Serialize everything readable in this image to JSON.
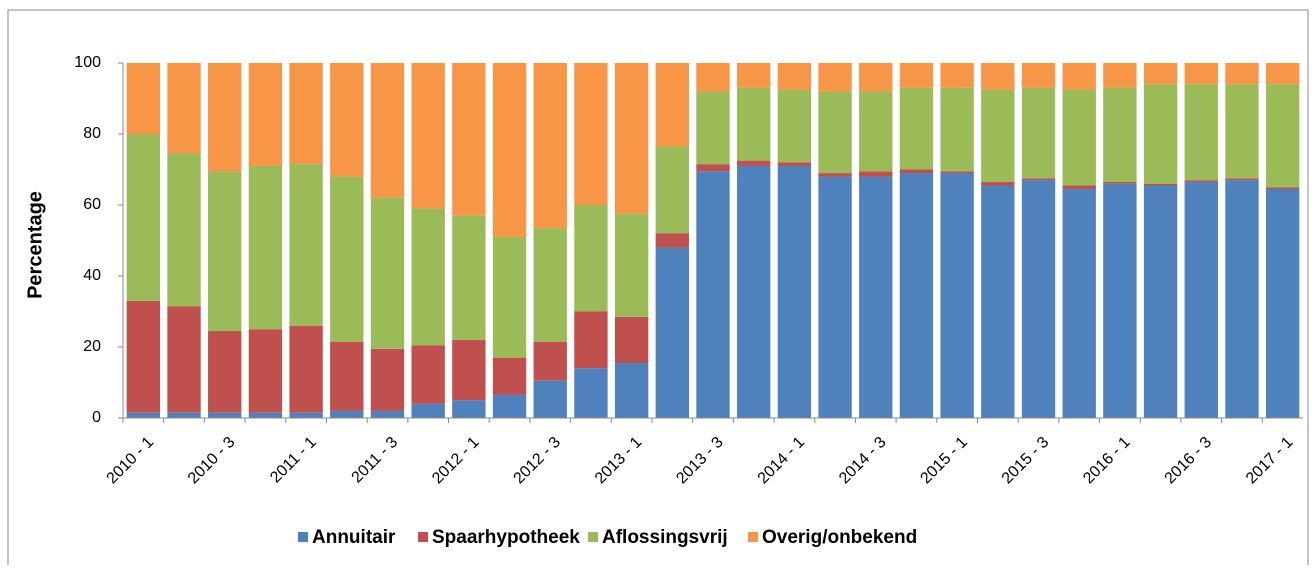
{
  "chart_data": {
    "type": "stacked_bar",
    "y_label": "Percentage",
    "categories": [
      "2010 - 1",
      null,
      "2010 - 3",
      null,
      "2011 - 1",
      null,
      "2011 - 3",
      null,
      "2012 - 1",
      null,
      "2012 - 3",
      null,
      "2013 - 1",
      null,
      "2013 - 3",
      null,
      "2014 - 1",
      null,
      "2014 - 3",
      null,
      "2015 - 1",
      null,
      "2015 - 3",
      null,
      "2016 - 1",
      null,
      "2016 - 3",
      null,
      "2017 - 1"
    ],
    "series": [
      {
        "name": "Annuitair",
        "color": "#4f81bd",
        "values": [
          1.5,
          1.5,
          1.5,
          1.5,
          1.5,
          2,
          2,
          4,
          5,
          6.5,
          10.5,
          14,
          15.5,
          48,
          69.5,
          71,
          71,
          68,
          68,
          69,
          69,
          65.5,
          67,
          64.5,
          66,
          65.5,
          66.5,
          67,
          64.5
        ]
      },
      {
        "name": "Spaarhypotheek",
        "color": "#c0504d",
        "values": [
          31.5,
          30,
          23,
          23.5,
          24.5,
          19.5,
          17.5,
          16.5,
          17,
          10.5,
          11,
          16,
          13,
          4,
          2,
          1.5,
          1,
          1,
          1.5,
          1,
          0.5,
          1,
          0.5,
          1,
          0.5,
          0.5,
          0.5,
          0.5,
          0.5
        ]
      },
      {
        "name": "Aflossingsvrij",
        "color": "#9bbb59",
        "values": [
          47,
          43,
          45,
          46,
          45.5,
          46.5,
          42.5,
          38.5,
          35,
          34,
          32,
          30,
          29,
          24.5,
          20.5,
          20.5,
          20.5,
          23,
          22.5,
          23,
          23.5,
          26,
          25.5,
          27,
          26.5,
          28,
          27,
          26.5,
          29
        ]
      },
      {
        "name": "Overig/onbekend",
        "color": "#f79646",
        "values": [
          20,
          25.5,
          30.5,
          29,
          28.5,
          32,
          38,
          41,
          43,
          49,
          46.5,
          40,
          42.5,
          23.5,
          8,
          7,
          7.5,
          8,
          8,
          7,
          7,
          7.5,
          7,
          7.5,
          7,
          6,
          6,
          6,
          6
        ]
      }
    ],
    "ylim": [
      0,
      100
    ],
    "yticks": [
      0,
      20,
      40,
      60,
      80,
      100
    ],
    "grid": false,
    "legend": "bottom"
  }
}
